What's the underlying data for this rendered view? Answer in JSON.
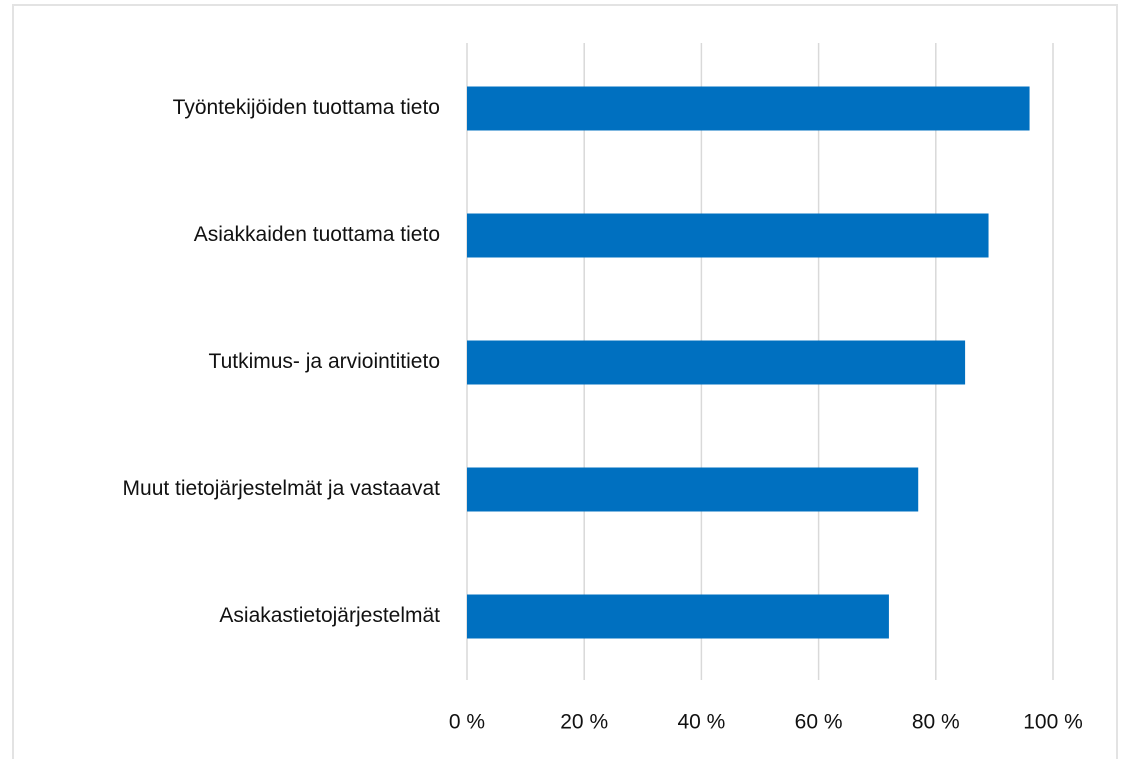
{
  "chart_data": {
    "type": "hbar",
    "categories": [
      "Työntekijöiden tuottama tieto",
      "Asiakkaiden tuottama tieto",
      "Tutkimus- ja arviointitieto",
      "Muut tietojärjestelmät ja vastaavat",
      "Asiakastietojärjestelmät"
    ],
    "values": [
      96,
      89,
      85,
      77,
      72
    ],
    "color": "#0070c0",
    "xlim": [
      0,
      100
    ],
    "xticks": [
      {
        "value": 0,
        "label": "0 %"
      },
      {
        "value": 20,
        "label": "20 %"
      },
      {
        "value": 40,
        "label": "40 %"
      },
      {
        "value": 60,
        "label": "60 %"
      },
      {
        "value": 80,
        "label": "80 %"
      },
      {
        "value": 100,
        "label": "100 %"
      }
    ],
    "grid": true
  }
}
